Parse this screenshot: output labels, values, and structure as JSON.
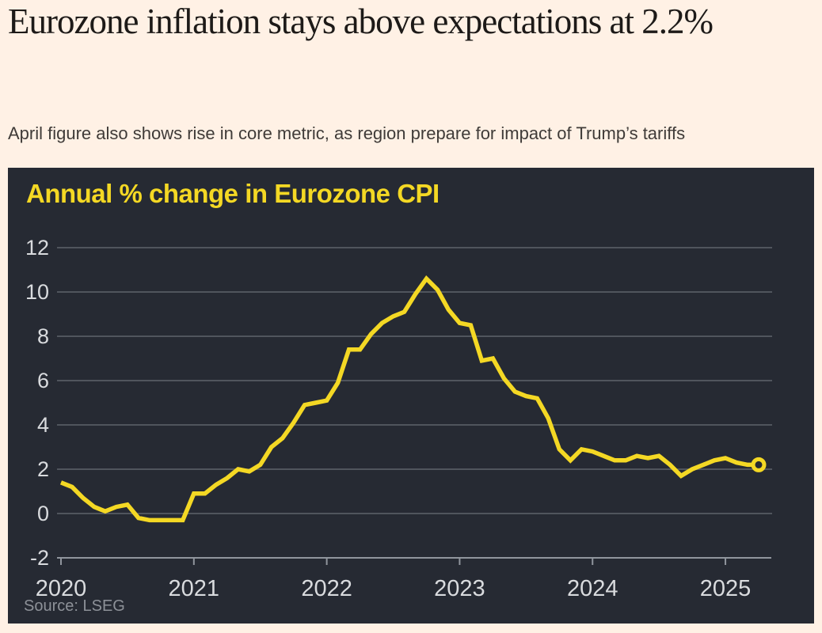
{
  "page": {
    "background": "#fff1e5",
    "headline_color": "#1d1a18",
    "subtitle_color": "#3f3b38"
  },
  "header": {
    "headline": "Eurozone inflation stays above expectations at 2.2%",
    "subtitle": "April figure also shows rise in core metric, as region prepare for impact of Trump’s tariffs"
  },
  "chart_data": {
    "type": "line",
    "title": "Annual % change in Eurozone CPI",
    "source": "Source: LSEG",
    "xlabel": "",
    "ylabel": "",
    "x_start": "2020-01",
    "x_end": "2025-04",
    "x_tick_labels": [
      "2020",
      "2021",
      "2022",
      "2023",
      "2024",
      "2025"
    ],
    "y_ticks": [
      -2,
      0,
      2,
      4,
      6,
      8,
      10,
      12
    ],
    "ylim": [
      -2,
      12
    ],
    "grid": true,
    "legend": false,
    "end_marker": "open-circle-on-last-point",
    "last_value": 2.2,
    "series": [
      {
        "name": "Eurozone CPI annual % change",
        "monthly_values": [
          1.4,
          1.2,
          0.7,
          0.3,
          0.1,
          0.3,
          0.4,
          -0.2,
          -0.3,
          -0.3,
          -0.3,
          -0.3,
          0.9,
          0.9,
          1.3,
          1.6,
          2.0,
          1.9,
          2.2,
          3.0,
          3.4,
          4.1,
          4.9,
          5.0,
          5.1,
          5.9,
          7.4,
          7.4,
          8.1,
          8.6,
          8.9,
          9.1,
          9.9,
          10.6,
          10.1,
          9.2,
          8.6,
          8.5,
          6.9,
          7.0,
          6.1,
          5.5,
          5.3,
          5.2,
          4.3,
          2.9,
          2.4,
          2.9,
          2.8,
          2.6,
          2.4,
          2.4,
          2.6,
          2.5,
          2.6,
          2.2,
          1.7,
          2.0,
          2.2,
          2.4,
          2.5,
          2.3,
          2.2,
          2.2
        ]
      }
    ],
    "colors": {
      "line": "#f4d824",
      "title": "#f4d824",
      "panel_bg": "#262a33",
      "grid": "#50555d",
      "axis": "#90959d",
      "tick_labels": "#d9dbde",
      "source_text": "#8d9198"
    }
  }
}
